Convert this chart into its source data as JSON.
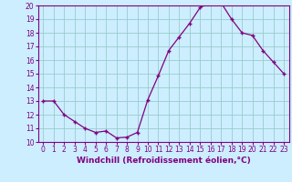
{
  "x": [
    0,
    1,
    2,
    3,
    4,
    5,
    6,
    7,
    8,
    9,
    10,
    11,
    12,
    13,
    14,
    15,
    16,
    17,
    18,
    19,
    20,
    21,
    22,
    23
  ],
  "y": [
    13.0,
    13.0,
    12.0,
    11.5,
    11.0,
    10.7,
    10.8,
    10.3,
    10.35,
    10.7,
    13.1,
    14.85,
    16.7,
    17.7,
    18.7,
    19.85,
    20.2,
    20.2,
    19.0,
    18.0,
    17.8,
    16.7,
    15.85,
    15.0
  ],
  "line_color": "#800080",
  "marker": "+",
  "bg_color": "#cceeff",
  "grid_color": "#99cccc",
  "xlabel": "Windchill (Refroidissement éolien,°C)",
  "ylim": [
    10,
    20
  ],
  "yticks": [
    10,
    11,
    12,
    13,
    14,
    15,
    16,
    17,
    18,
    19,
    20
  ],
  "xlim": [
    -0.5,
    23.5
  ],
  "xticks": [
    0,
    1,
    2,
    3,
    4,
    5,
    6,
    7,
    8,
    9,
    10,
    11,
    12,
    13,
    14,
    15,
    16,
    17,
    18,
    19,
    20,
    21,
    22,
    23
  ],
  "label_fontsize": 6.5,
  "tick_fontsize": 5.5,
  "xlabel_color": "#800080",
  "tick_color": "#800080",
  "spine_color": "#800080"
}
